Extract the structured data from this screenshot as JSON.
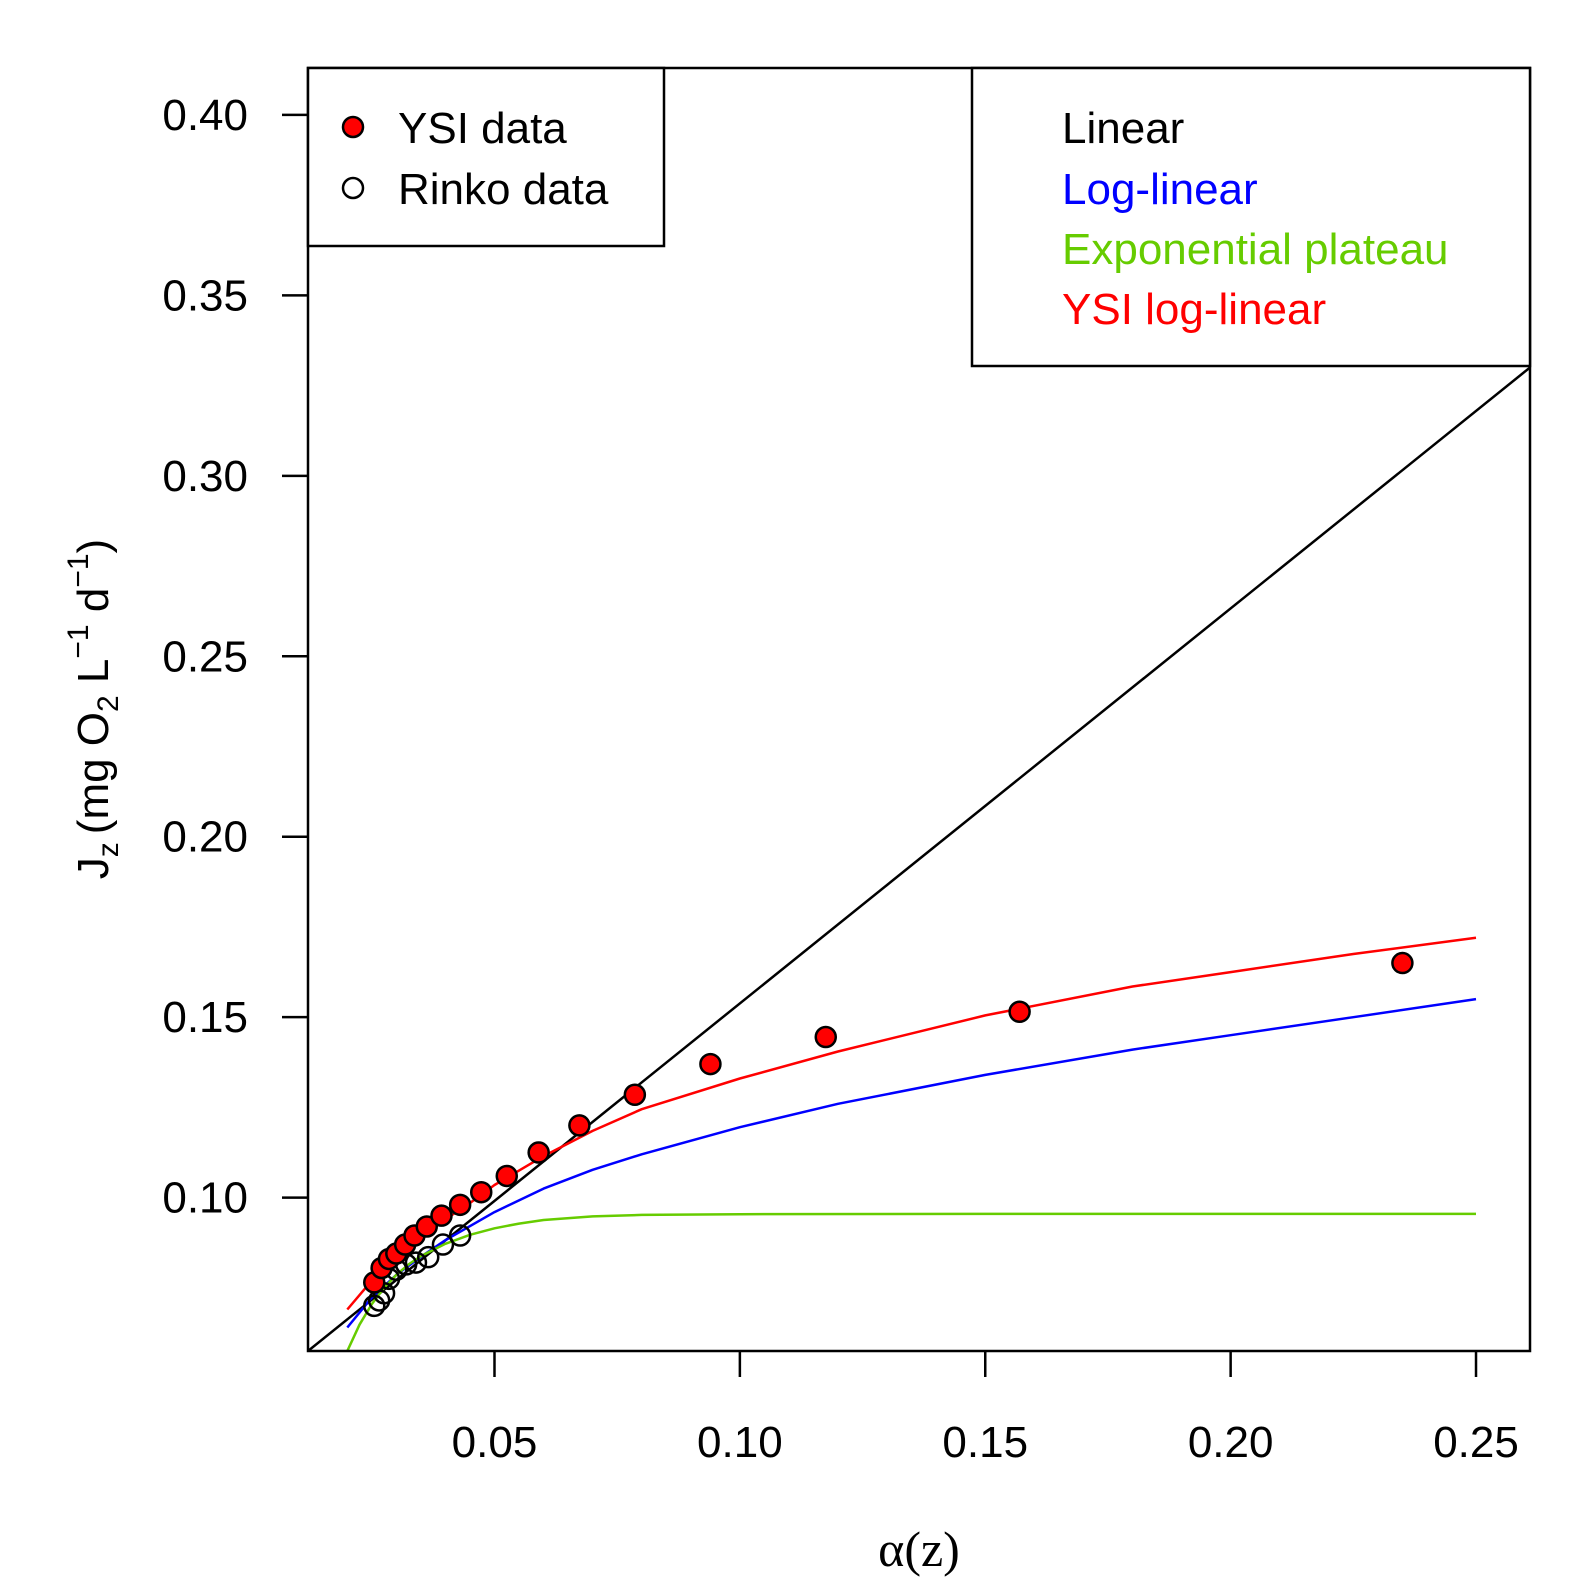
{
  "chart_data": {
    "type": "scatter",
    "xlabel": "α(z)",
    "ylabel": {
      "base": "J",
      "sub": "z",
      "units": [
        "(mg O",
        "2",
        " L",
        "−1",
        " d",
        "−1",
        ")"
      ]
    },
    "xlim": [
      0.012,
      0.261
    ],
    "ylim": [
      0.0575,
      0.413
    ],
    "xticks": [
      0.05,
      0.1,
      0.15,
      0.2,
      0.25
    ],
    "xtick_labels": [
      "0.05",
      "0.10",
      "0.15",
      "0.20",
      "0.25"
    ],
    "yticks": [
      0.1,
      0.15,
      0.2,
      0.25,
      0.3,
      0.35,
      0.4
    ],
    "ytick_labels": [
      "0.10",
      "0.15",
      "0.20",
      "0.25",
      "0.30",
      "0.35",
      "0.40"
    ],
    "grid": false,
    "legend_points": {
      "position": "top-left",
      "entries": [
        {
          "label": "YSI data",
          "marker": "filled-circle",
          "fill": "#ff0000"
        },
        {
          "label": "Rinko data",
          "marker": "open-circle",
          "fill": "none"
        }
      ]
    },
    "legend_lines": {
      "position": "top-right",
      "entries": [
        {
          "label": "Linear",
          "color": "#000000"
        },
        {
          "label": "Log-linear",
          "color": "#0000ff"
        },
        {
          "label": "Exponential plateau",
          "color": "#66cc00"
        },
        {
          "label": "YSI log-linear",
          "color": "#ff0000"
        }
      ]
    },
    "series": [
      {
        "name": "YSI data",
        "kind": "points",
        "fill": "#ff0000",
        "x": [
          0.0255,
          0.027,
          0.0285,
          0.03,
          0.0318,
          0.0337,
          0.0362,
          0.0392,
          0.043,
          0.0473,
          0.0525,
          0.059,
          0.0673,
          0.0786,
          0.094,
          0.1175,
          0.157,
          0.235
        ],
        "y": [
          0.0765,
          0.0805,
          0.083,
          0.0845,
          0.087,
          0.0895,
          0.092,
          0.095,
          0.098,
          0.1015,
          0.106,
          0.1125,
          0.12,
          0.1285,
          0.137,
          0.1445,
          0.1515,
          0.165
        ]
      },
      {
        "name": "Rinko data",
        "kind": "points",
        "fill": "none",
        "x": [
          0.0255,
          0.0265,
          0.0275,
          0.0285,
          0.03,
          0.032,
          0.034,
          0.0365,
          0.0395,
          0.043
        ],
        "y": [
          0.07,
          0.0715,
          0.0735,
          0.0775,
          0.08,
          0.0815,
          0.082,
          0.0835,
          0.087,
          0.0895
        ]
      },
      {
        "name": "Linear",
        "kind": "line",
        "color": "#000000",
        "x": [
          0.012,
          0.261
        ],
        "y": [
          0.0575,
          0.33
        ]
      },
      {
        "name": "Log-linear",
        "kind": "line",
        "color": "#0000ff",
        "x": [
          0.02,
          0.025,
          0.03,
          0.035,
          0.04,
          0.05,
          0.06,
          0.07,
          0.08,
          0.1,
          0.12,
          0.15,
          0.18,
          0.2,
          0.225,
          0.25
        ],
        "y": [
          0.064,
          0.0723,
          0.0786,
          0.0836,
          0.0882,
          0.096,
          0.1025,
          0.1077,
          0.112,
          0.1195,
          0.126,
          0.134,
          0.141,
          0.145,
          0.15,
          0.155
        ]
      },
      {
        "name": "Exponential plateau",
        "kind": "line",
        "color": "#66cc00",
        "x": [
          0.02,
          0.0225,
          0.025,
          0.0275,
          0.03,
          0.0325,
          0.035,
          0.04,
          0.045,
          0.05,
          0.055,
          0.06,
          0.07,
          0.08,
          0.1,
          0.15,
          0.2,
          0.25
        ],
        "y": [
          0.0575,
          0.0648,
          0.0705,
          0.075,
          0.0786,
          0.0815,
          0.0838,
          0.0872,
          0.0897,
          0.0915,
          0.0928,
          0.0938,
          0.0948,
          0.0952,
          0.0954,
          0.0955,
          0.0955,
          0.0955
        ]
      },
      {
        "name": "YSI log-linear",
        "kind": "line",
        "color": "#ff0000",
        "x": [
          0.02,
          0.025,
          0.03,
          0.035,
          0.04,
          0.045,
          0.05,
          0.06,
          0.07,
          0.08,
          0.1,
          0.12,
          0.15,
          0.18,
          0.2,
          0.225,
          0.25
        ],
        "y": [
          0.069,
          0.077,
          0.0838,
          0.0895,
          0.094,
          0.0985,
          0.1035,
          0.1115,
          0.1185,
          0.1245,
          0.133,
          0.1405,
          0.1505,
          0.1585,
          0.1625,
          0.1675,
          0.172
        ]
      }
    ]
  }
}
